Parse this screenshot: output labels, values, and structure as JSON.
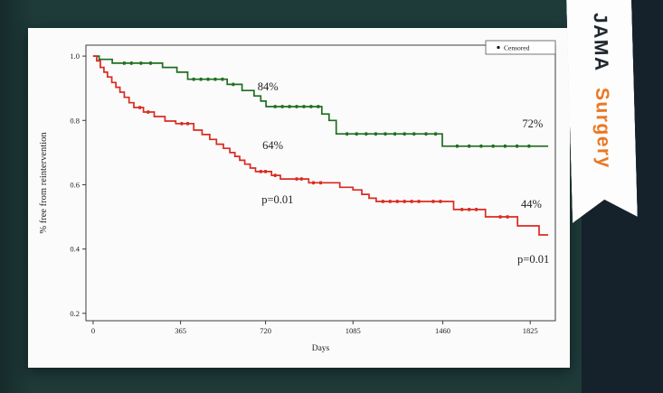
{
  "page": {
    "background_color": "#1e3a39",
    "edge_color": "#162b2b",
    "panel_color": "#15222b",
    "chevron_color": "#2b4a4a",
    "slide_color": "#fbfbfb"
  },
  "ribbon": {
    "line1": "JAMA",
    "line2": "Surgery",
    "jama_color": "#1c242c",
    "surgery_color": "#e87722"
  },
  "chart_data": {
    "type": "line",
    "subtype": "kaplan-meier-step",
    "title": "",
    "xlabel": "Days",
    "ylabel": "% free from reintervention",
    "x_ticks": [
      0,
      365,
      720,
      1085,
      1460,
      1825
    ],
    "y_ticks": [
      0.2,
      0.4,
      0.6,
      0.8,
      1.0
    ],
    "y_tick_labels": [
      "0.2",
      "0.4",
      "0.6",
      "0.8",
      "1.0"
    ],
    "xlim": [
      -30,
      1930
    ],
    "ylim": [
      0.177,
      1.034
    ],
    "grid": false,
    "frame_color": "#3c3c3c",
    "legend": {
      "label": "Censored",
      "position": "top-right",
      "marker": "dot"
    },
    "series": [
      {
        "name": "upper-green",
        "color": "#1f6e1f",
        "step": true,
        "points": [
          [
            0,
            1.0
          ],
          [
            25,
            0.99
          ],
          [
            80,
            0.978
          ],
          [
            290,
            0.965
          ],
          [
            350,
            0.95
          ],
          [
            395,
            0.928
          ],
          [
            560,
            0.912
          ],
          [
            622,
            0.893
          ],
          [
            672,
            0.876
          ],
          [
            700,
            0.86
          ],
          [
            722,
            0.843
          ],
          [
            955,
            0.82
          ],
          [
            985,
            0.8
          ],
          [
            1015,
            0.758
          ],
          [
            1458,
            0.72
          ],
          [
            1900,
            0.72
          ]
        ],
        "censor_days": [
          130,
          160,
          200,
          240,
          420,
          450,
          480,
          510,
          540,
          585,
          760,
          790,
          820,
          850,
          880,
          910,
          940,
          1060,
          1100,
          1140,
          1180,
          1220,
          1260,
          1300,
          1340,
          1390,
          1430,
          1520,
          1570,
          1620,
          1670,
          1720,
          1770,
          1820
        ]
      },
      {
        "name": "lower-red",
        "color": "#da2a20",
        "step": true,
        "points": [
          [
            0,
            1.0
          ],
          [
            15,
            0.985
          ],
          [
            30,
            0.965
          ],
          [
            45,
            0.95
          ],
          [
            60,
            0.935
          ],
          [
            78,
            0.918
          ],
          [
            95,
            0.903
          ],
          [
            112,
            0.888
          ],
          [
            130,
            0.872
          ],
          [
            150,
            0.855
          ],
          [
            170,
            0.84
          ],
          [
            210,
            0.826
          ],
          [
            255,
            0.812
          ],
          [
            300,
            0.798
          ],
          [
            345,
            0.79
          ],
          [
            420,
            0.77
          ],
          [
            455,
            0.756
          ],
          [
            487,
            0.741
          ],
          [
            515,
            0.726
          ],
          [
            544,
            0.713
          ],
          [
            571,
            0.7
          ],
          [
            592,
            0.688
          ],
          [
            612,
            0.676
          ],
          [
            633,
            0.664
          ],
          [
            656,
            0.652
          ],
          [
            678,
            0.641
          ],
          [
            745,
            0.629
          ],
          [
            782,
            0.618
          ],
          [
            900,
            0.606
          ],
          [
            1030,
            0.592
          ],
          [
            1085,
            0.584
          ],
          [
            1122,
            0.57
          ],
          [
            1152,
            0.558
          ],
          [
            1182,
            0.548
          ],
          [
            1505,
            0.523
          ],
          [
            1638,
            0.5
          ],
          [
            1772,
            0.472
          ],
          [
            1862,
            0.444
          ],
          [
            1900,
            0.444
          ]
        ],
        "censor_days": [
          195,
          230,
          370,
          395,
          700,
          720,
          760,
          850,
          870,
          920,
          950,
          1210,
          1240,
          1270,
          1300,
          1330,
          1360,
          1420,
          1450,
          1540,
          1570,
          1600,
          1700,
          1730
        ]
      }
    ],
    "annotations": [
      {
        "text": "84%",
        "day": 730,
        "value": 0.905
      },
      {
        "text": "72%",
        "day": 1835,
        "value": 0.79
      },
      {
        "text": "64%",
        "day": 750,
        "value": 0.722
      },
      {
        "text": "p=0.01",
        "day": 770,
        "value": 0.553
      },
      {
        "text": "44%",
        "day": 1830,
        "value": 0.54
      },
      {
        "text": "p=0.01",
        "day": 1838,
        "value": 0.368
      }
    ],
    "annotation_color": "#1f1f1f"
  }
}
